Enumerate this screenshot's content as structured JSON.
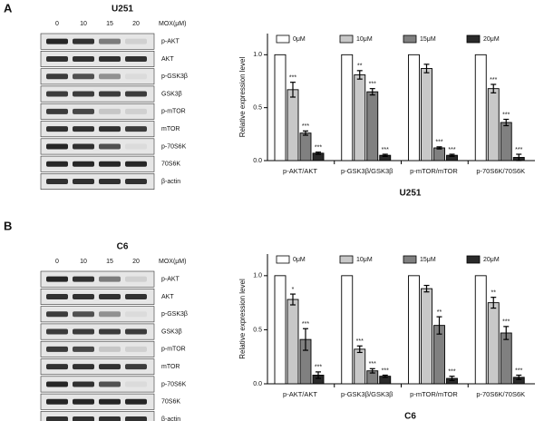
{
  "panels": [
    "A",
    "B"
  ],
  "blots": [
    {
      "title": "U251",
      "doses": [
        "0",
        "10",
        "15",
        "20"
      ],
      "dose_label": "MOX(μM)",
      "proteins": [
        "p-AKT",
        "AKT",
        "p-GSK3β",
        "GSK3β",
        "p-mTOR",
        "mTOR",
        "p-70S6K",
        "70S6K",
        "β-actin"
      ]
    },
    {
      "title": "C6",
      "doses": [
        "0",
        "10",
        "15",
        "20"
      ],
      "dose_label": "MOX(μM)",
      "proteins": [
        "p-AKT",
        "AKT",
        "p-GSK3β",
        "GSK3β",
        "p-mTOR",
        "mTOR",
        "p-70S6K",
        "70S6K",
        "β-actin"
      ]
    }
  ],
  "chart_data": [
    {
      "type": "bar",
      "x_title": "U251",
      "y_title": "Relative expression level",
      "categories": [
        "p-AKT/AKT",
        "p-GSK3β/GSK3β",
        "p-mTOR/mTOR",
        "p-70S6K/70S6K"
      ],
      "ylim": [
        0,
        1.2
      ],
      "yticks": [
        {
          "value": 0,
          "label": "0.0"
        },
        0.5,
        {
          "value": 1,
          "label": "1.0"
        }
      ],
      "series": [
        {
          "name": "0μM",
          "color": "#ffffff",
          "values": [
            1,
            1,
            1,
            1
          ]
        },
        {
          "name": "10μM",
          "color": "#c8c8c8",
          "values": [
            0.67,
            0.81,
            0.87,
            0.68
          ],
          "errors": [
            0.07,
            0.04,
            0.04,
            0.04
          ],
          "stars": [
            "***",
            "**",
            null,
            "***"
          ]
        },
        {
          "name": "15μM",
          "color": "#808080",
          "values": [
            0.26,
            0.65,
            0.12,
            0.36
          ],
          "errors": [
            0.02,
            0.03,
            0.01,
            0.03
          ],
          "stars": [
            "***",
            "***",
            "***",
            "***"
          ]
        },
        {
          "name": "20μM",
          "color": "#2a2a2a",
          "values": [
            0.07,
            0.05,
            0.05,
            0.03
          ],
          "errors": [
            0.01,
            0.01,
            0.01,
            0.03
          ],
          "stars": [
            "***",
            "***",
            "***",
            "***"
          ]
        }
      ]
    },
    {
      "type": "bar",
      "x_title": "C6",
      "y_title": "Relative expression level",
      "categories": [
        "p-AKT/AKT",
        "p-GSK3β/GSK3β",
        "p-mTOR/mTOR",
        "p-70S6K/70S6K"
      ],
      "ylim": [
        0,
        1.2
      ],
      "yticks": [
        {
          "value": 0,
          "label": "0.0"
        },
        0.5,
        {
          "value": 1,
          "label": "1.0"
        }
      ],
      "series": [
        {
          "name": "0μM",
          "color": "#ffffff",
          "values": [
            1,
            1,
            1,
            1
          ]
        },
        {
          "name": "10μM",
          "color": "#c8c8c8",
          "values": [
            0.78,
            0.32,
            0.88,
            0.75
          ],
          "errors": [
            0.05,
            0.03,
            0.03,
            0.05
          ],
          "stars": [
            "*",
            "***",
            null,
            "**"
          ]
        },
        {
          "name": "15μM",
          "color": "#808080",
          "values": [
            0.41,
            0.12,
            0.54,
            0.47
          ],
          "errors": [
            0.1,
            0.02,
            0.08,
            0.06
          ],
          "stars": [
            "***",
            "***",
            "**",
            "***"
          ]
        },
        {
          "name": "20μM",
          "color": "#2a2a2a",
          "values": [
            0.08,
            0.07,
            0.05,
            0.06
          ],
          "errors": [
            0.03,
            0.01,
            0.02,
            0.02
          ],
          "stars": [
            "***",
            "***",
            "***",
            "***"
          ]
        }
      ]
    }
  ]
}
